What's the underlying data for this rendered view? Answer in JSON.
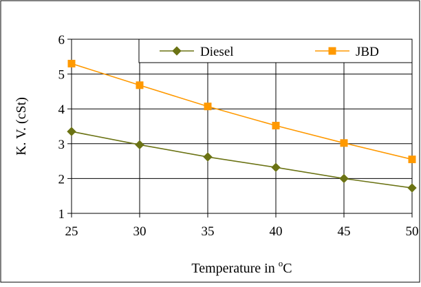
{
  "chart_data": {
    "type": "line",
    "x": [
      25,
      30,
      35,
      40,
      45,
      50
    ],
    "xlim": [
      25,
      50
    ],
    "ylim": [
      1,
      6
    ],
    "x_ticks": [
      "25",
      "30",
      "35",
      "40",
      "45",
      "50"
    ],
    "y_ticks": [
      "1",
      "2",
      "3",
      "4",
      "5",
      "6"
    ],
    "xlabel": {
      "text": "Temperature in ",
      "superscript": "o",
      "suffix": "C"
    },
    "ylabel": "K. V. (cSt)",
    "grid": true,
    "legend": "top",
    "series": [
      {
        "name": "Diesel",
        "values": [
          3.35,
          2.97,
          2.62,
          2.32,
          2.0,
          1.73
        ],
        "color": "#6b7314",
        "marker": "diamond"
      },
      {
        "name": "JBD",
        "values": [
          5.3,
          4.68,
          4.07,
          3.52,
          3.02,
          2.55
        ],
        "color": "#ff9900",
        "marker": "square"
      }
    ]
  }
}
